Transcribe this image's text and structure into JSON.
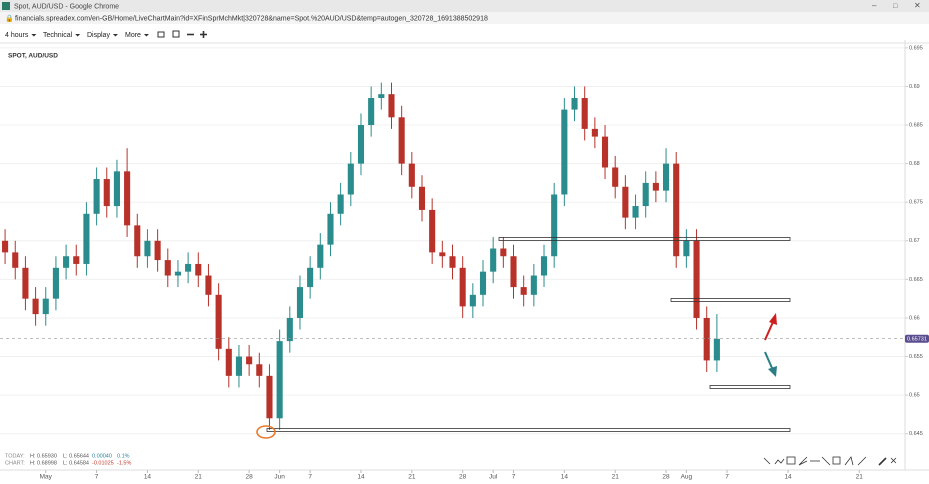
{
  "window": {
    "title": "Spot, AUD/USD - Google Chrome",
    "url": "financials.spreadex.com/en-GB/Home/LiveChartMain?id=XFinSprMchMkt|320728&name=Spot.%20AUD/USD&temp=autogen_320728_1691388502918"
  },
  "toolbar": [
    "4 hours",
    "Technical",
    "Display",
    "More"
  ],
  "info": {
    "rows": [
      [
        "TODAY:",
        "H: 0.65930",
        "L: 0.65644",
        "0.00040",
        "0.1%"
      ],
      [
        "CHART:",
        "H: 0.68998",
        "L: 0.64584",
        "-0.01025",
        "-1.5%"
      ]
    ]
  },
  "chart_data": {
    "type": "candlestick",
    "title": "SPOT, AUD/USD",
    "categories": [
      null,
      null,
      null,
      null,
      "May",
      null,
      null,
      null,
      null,
      "7",
      null,
      null,
      null,
      null,
      "14",
      null,
      null,
      null,
      null,
      "21",
      null,
      null,
      null,
      null,
      "28",
      null,
      null,
      "Jun",
      null,
      null,
      "7",
      null,
      null,
      null,
      null,
      "14",
      null,
      null,
      null,
      null,
      "21",
      null,
      null,
      null,
      null,
      "28",
      null,
      null,
      "Jul",
      null,
      "7",
      null,
      null,
      null,
      null,
      "14",
      null,
      null,
      null,
      null,
      "21",
      null,
      null,
      null,
      null,
      "28",
      null,
      "Aug",
      null,
      null,
      null,
      "7",
      null,
      null,
      null,
      null,
      null,
      "14",
      null,
      null,
      null,
      null,
      null,
      null,
      "21",
      null,
      null,
      null,
      null
    ],
    "open": [
      0.67,
      0.6685,
      0.6665,
      0.6625,
      0.6605,
      0.6625,
      0.6665,
      0.668,
      0.667,
      0.6735,
      0.678,
      0.6745,
      0.679,
      0.672,
      0.668,
      0.67,
      0.6675,
      0.6655,
      0.666,
      0.667,
      0.6655,
      0.663,
      0.656,
      0.6525,
      0.655,
      0.654,
      0.6525,
      0.647,
      0.657,
      0.66,
      0.664,
      0.6665,
      0.6695,
      0.6735,
      0.676,
      0.68,
      0.685,
      0.6885,
      0.689,
      0.686,
      0.68,
      0.677,
      0.674,
      0.6685,
      0.668,
      0.6665,
      0.6615,
      0.663,
      0.666,
      0.669,
      0.668,
      0.664,
      0.663,
      0.6655,
      0.668,
      0.676,
      0.687,
      0.6885,
      0.6845,
      0.6835,
      0.6795,
      0.677,
      0.673,
      0.6745,
      0.6775,
      0.6765,
      0.68,
      0.668,
      0.67,
      0.66,
      0.6545,
      null,
      null,
      null,
      null,
      null,
      null,
      null,
      null,
      null,
      null,
      null,
      null,
      null,
      null,
      null,
      null,
      null,
      null
    ],
    "high": [
      0.6715,
      0.67,
      0.668,
      0.664,
      0.664,
      0.668,
      0.6695,
      0.6695,
      0.675,
      0.6795,
      0.6795,
      0.6805,
      0.682,
      0.6735,
      0.6715,
      0.6715,
      0.669,
      0.6675,
      0.6685,
      0.6685,
      0.667,
      0.6645,
      0.6575,
      0.6565,
      0.6565,
      0.6555,
      0.654,
      0.6585,
      0.6615,
      0.6655,
      0.668,
      0.671,
      0.675,
      0.6775,
      0.6815,
      0.6865,
      0.69,
      0.6905,
      0.6905,
      0.6875,
      0.6815,
      0.6785,
      0.6755,
      0.67,
      0.6695,
      0.668,
      0.6645,
      0.6675,
      0.6705,
      0.6705,
      0.6695,
      0.6655,
      0.667,
      0.6695,
      0.6775,
      0.6885,
      0.69,
      0.69,
      0.686,
      0.685,
      0.681,
      0.6785,
      0.676,
      0.679,
      0.679,
      0.682,
      0.6815,
      0.6715,
      0.6715,
      0.6615,
      0.6605,
      null,
      null,
      null,
      null,
      null,
      null,
      null,
      null,
      null,
      null,
      null,
      null,
      null,
      null,
      null,
      null,
      null,
      null
    ],
    "low": [
      0.667,
      0.665,
      0.661,
      0.659,
      0.659,
      0.661,
      0.665,
      0.6655,
      0.6655,
      0.672,
      0.673,
      0.673,
      0.6705,
      0.6665,
      0.6665,
      0.666,
      0.664,
      0.664,
      0.6645,
      0.664,
      0.6615,
      0.6545,
      0.651,
      0.651,
      0.6525,
      0.651,
      0.6455,
      0.6455,
      0.6555,
      0.6585,
      0.6625,
      0.665,
      0.668,
      0.672,
      0.6745,
      0.6785,
      0.6835,
      0.687,
      0.6845,
      0.6785,
      0.6755,
      0.6725,
      0.667,
      0.6665,
      0.665,
      0.66,
      0.66,
      0.6615,
      0.6645,
      0.6665,
      0.6625,
      0.6615,
      0.6615,
      0.664,
      0.6665,
      0.6745,
      0.6855,
      0.683,
      0.682,
      0.678,
      0.6755,
      0.6715,
      0.6715,
      0.673,
      0.675,
      0.675,
      0.6665,
      0.6665,
      0.6585,
      0.653,
      0.653,
      null,
      null,
      null,
      null,
      null,
      null,
      null,
      null,
      null,
      null,
      null,
      null,
      null,
      null,
      null,
      null,
      null,
      null
    ],
    "close": [
      0.6685,
      0.6665,
      0.6625,
      0.6605,
      0.6625,
      0.6665,
      0.668,
      0.667,
      0.6735,
      0.678,
      0.6745,
      0.679,
      0.672,
      0.668,
      0.67,
      0.6675,
      0.6655,
      0.666,
      0.667,
      0.6655,
      0.663,
      0.656,
      0.6525,
      0.655,
      0.654,
      0.6525,
      0.647,
      0.657,
      0.66,
      0.664,
      0.6665,
      0.6695,
      0.6735,
      0.676,
      0.68,
      0.685,
      0.6885,
      0.689,
      0.686,
      0.68,
      0.677,
      0.674,
      0.6685,
      0.668,
      0.6665,
      0.6615,
      0.663,
      0.666,
      0.669,
      0.668,
      0.664,
      0.663,
      0.6655,
      0.668,
      0.676,
      0.687,
      0.6885,
      0.6845,
      0.6835,
      0.6795,
      0.677,
      0.673,
      0.6745,
      0.6775,
      0.6765,
      0.68,
      0.668,
      0.67,
      0.66,
      0.6545,
      0.6573,
      null,
      null,
      null,
      null,
      null,
      null,
      null,
      null,
      null,
      null,
      null,
      null,
      null,
      null,
      null,
      null,
      null,
      null
    ],
    "up_color": "#2a8c8c",
    "down_color": "#b8322a",
    "ylim": [
      0.6403,
      0.6955
    ],
    "yticks": [
      0.645,
      0.65,
      0.655,
      0.66,
      0.665,
      0.67,
      0.675,
      0.68,
      0.685,
      0.69,
      0.695
    ],
    "grid": true,
    "last_price": 0.65731,
    "last_price_color": "#5b4e8f"
  }
}
